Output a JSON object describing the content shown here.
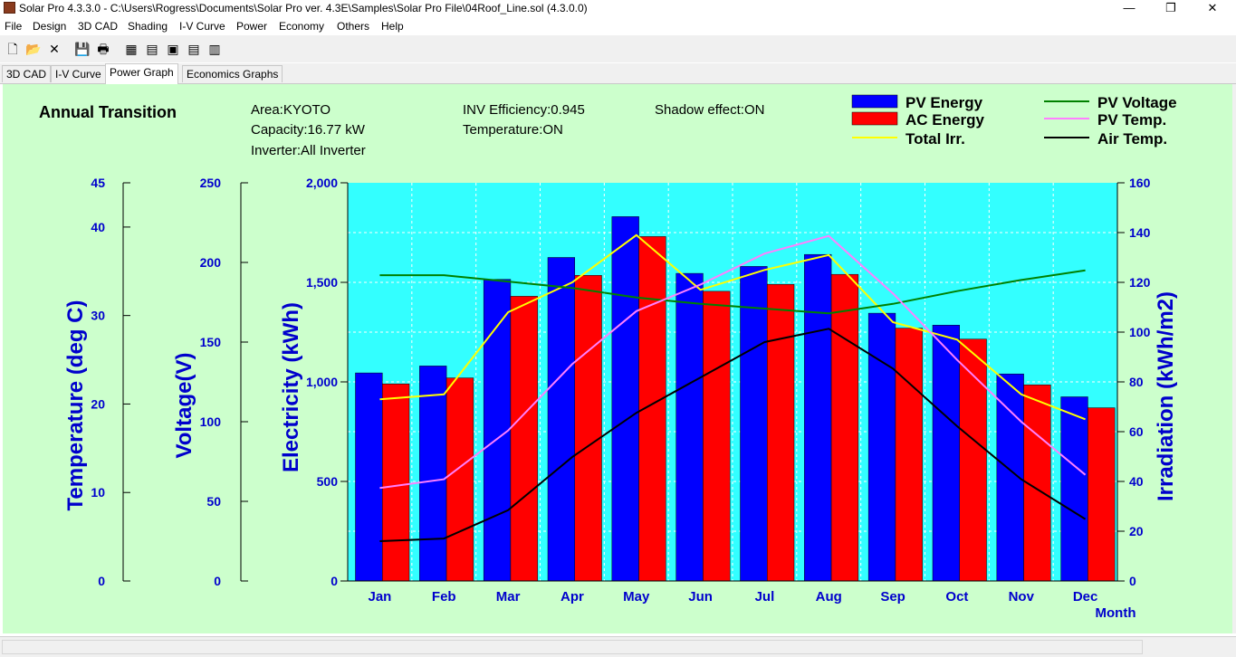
{
  "window": {
    "title": "Solar Pro 4.3.3.0 - C:\\Users\\Rogress\\Documents\\Solar Pro ver. 4.3E\\Samples\\Solar Pro File\\04Roof_Line.sol (4.3.0.0)",
    "minimize": "—",
    "maximize": "❐",
    "close": "✕"
  },
  "menu": [
    "File",
    "Design",
    "3D CAD",
    "Shading",
    "I-V Curve",
    "Power",
    "Economy",
    "Others",
    "Help"
  ],
  "toolbar": {
    "new": "🗋",
    "open": "📂",
    "cut": "✕",
    "save": "💾",
    "print": "🖶",
    "b1": "▦",
    "b2": "▤",
    "b3": "▣",
    "b4": "▤",
    "b5": "▥"
  },
  "tabs": [
    "3D CAD",
    "I-V Curve",
    "Power Graph",
    "Economics Graphs"
  ],
  "active_tab": 2,
  "info": {
    "heading": "Annual Transition",
    "area": "Area:KYOTO",
    "capacity": "Capacity:16.77 kW",
    "inverter": "Inverter:All Inverter",
    "inv_eff": "INV Efficiency:0.945",
    "temperature": "Temperature:ON",
    "shadow": "Shadow effect:ON"
  },
  "colors": {
    "panel_bg": "#ccffcc",
    "plot_bg": "#33ffff",
    "pv_energy": "#0000ff",
    "ac_energy": "#ff0000",
    "total_irr": "#ffff00",
    "pv_voltage": "#008000",
    "pv_temp": "#ff80ff",
    "air_temp": "#000000",
    "axis_text": "#0000cc"
  },
  "chart_data": {
    "type": "bar",
    "categories": [
      "Jan",
      "Feb",
      "Mar",
      "Apr",
      "May",
      "Jun",
      "Jul",
      "Aug",
      "Sep",
      "Oct",
      "Nov",
      "Dec"
    ],
    "xlabel": "Month",
    "axes": {
      "electricity": {
        "label": "Electricity (kWh)",
        "range": [
          0,
          2000
        ],
        "ticks": [
          "0",
          "500",
          "1,000",
          "1,500",
          "2,000"
        ]
      },
      "irradiation": {
        "label": "Irradiation (kWh/m2)",
        "range": [
          0,
          160
        ],
        "ticks": [
          "0",
          "20",
          "40",
          "60",
          "80",
          "100",
          "120",
          "140",
          "160"
        ]
      },
      "voltage": {
        "label": "Voltage(V)",
        "range": [
          0,
          250
        ],
        "ticks": [
          "0",
          "50",
          "100",
          "150",
          "200",
          "250"
        ]
      },
      "temperature": {
        "label": "Temperature (deg C)",
        "range": [
          0,
          45
        ],
        "ticks": [
          "0",
          "10",
          "20",
          "30",
          "40",
          "45"
        ]
      }
    },
    "grid": true,
    "series": [
      {
        "name": "PV Energy",
        "type": "bar",
        "axis": "electricity",
        "values": [
          1045,
          1080,
          1515,
          1625,
          1830,
          1545,
          1580,
          1640,
          1345,
          1285,
          1040,
          925
        ]
      },
      {
        "name": "AC Energy",
        "type": "bar",
        "axis": "electricity",
        "values": [
          990,
          1020,
          1430,
          1535,
          1730,
          1455,
          1490,
          1540,
          1270,
          1215,
          985,
          870
        ]
      },
      {
        "name": "Total Irr.",
        "type": "line",
        "axis": "irradiation",
        "values": [
          73,
          75,
          108,
          120,
          139,
          117,
          125,
          131,
          104,
          97,
          75,
          65
        ]
      },
      {
        "name": "PV Voltage",
        "type": "line",
        "axis": "voltage",
        "values": [
          192,
          192,
          188,
          184,
          178,
          174,
          171,
          168,
          174,
          182,
          189,
          195
        ]
      },
      {
        "name": "PV Temp.",
        "type": "line",
        "axis": "temperature",
        "values": [
          10.5,
          11.5,
          17,
          24.5,
          30.5,
          33.5,
          37,
          39,
          32.5,
          25,
          18,
          12
        ]
      },
      {
        "name": "Air Temp.",
        "type": "line",
        "axis": "temperature",
        "values": [
          4.5,
          4.8,
          8,
          14,
          19,
          23,
          27,
          28.5,
          24,
          17.5,
          11.5,
          7
        ]
      }
    ],
    "legend": [
      {
        "name": "PV Energy",
        "kind": "box",
        "color": "#0000ff"
      },
      {
        "name": "AC Energy",
        "kind": "box",
        "color": "#ff0000"
      },
      {
        "name": "Total Irr.",
        "kind": "line",
        "color": "#ffff00"
      },
      {
        "name": "PV Voltage",
        "kind": "line",
        "color": "#008000"
      },
      {
        "name": "PV Temp.",
        "kind": "line",
        "color": "#ff80ff"
      },
      {
        "name": "Air Temp.",
        "kind": "line",
        "color": "#000000"
      }
    ],
    "legend_placement": "top-right"
  }
}
